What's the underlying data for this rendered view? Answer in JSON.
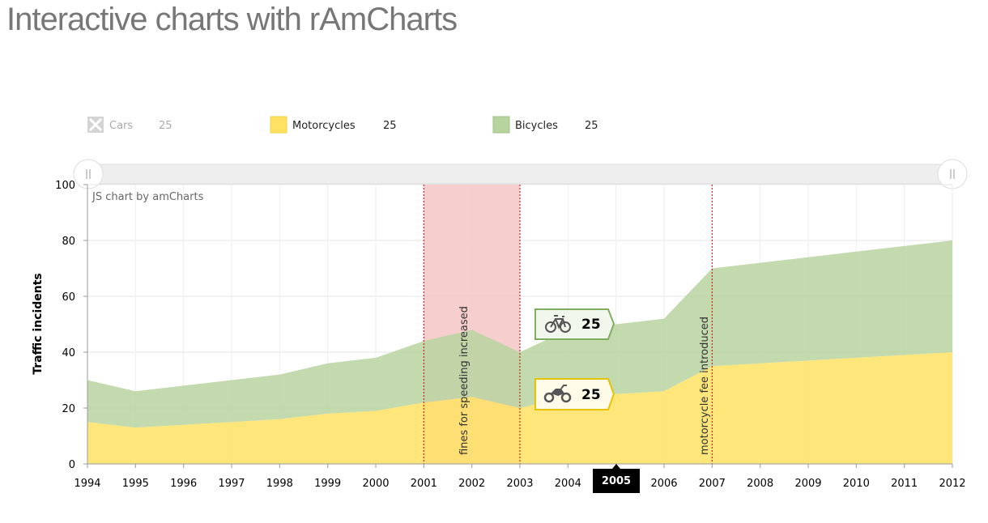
{
  "page": {
    "title": "Interactive charts with rAmCharts"
  },
  "colors": {
    "cars": "#cccccc",
    "motorcycles": "#ffe264",
    "motorcycles_border": "#e6c200",
    "bicycles": "#b7d4a0",
    "bicycles_border": "#7fad5e",
    "guide_band": "#f4c6c6",
    "guide_line": "#cc0000",
    "cursor_label_bg": "#000000"
  },
  "legend": {
    "items": [
      {
        "label": "Cars",
        "value": "25",
        "hidden": true,
        "icon": "close-x-icon"
      },
      {
        "label": "Motorcycles",
        "value": "25",
        "hidden": false
      },
      {
        "label": "Bicycles",
        "value": "25",
        "hidden": false
      }
    ]
  },
  "credit": "JS chart by amCharts",
  "balloons": {
    "bicycles": {
      "icon": "bicycle-icon",
      "value": "25"
    },
    "motorcycles": {
      "icon": "motorcycle-icon",
      "value": "25"
    }
  },
  "cursor": {
    "label": "2005"
  },
  "chart_data": {
    "type": "area",
    "stacked": true,
    "ylabel": "Traffic incidents",
    "xlabel": "",
    "ylim": [
      0,
      100
    ],
    "yticks": [
      0,
      20,
      40,
      60,
      80,
      100
    ],
    "grid": true,
    "legend_position": "top",
    "x": [
      "1994",
      "1995",
      "1996",
      "1997",
      "1998",
      "1999",
      "2000",
      "2001",
      "2002",
      "2003",
      "2004",
      "2005",
      "2006",
      "2007",
      "2008",
      "2009",
      "2010",
      "2011",
      "2012"
    ],
    "series": [
      {
        "name": "Motorcycles",
        "key": "motorcycles",
        "values": [
          15,
          13,
          14,
          15,
          16,
          18,
          19,
          22,
          24,
          20,
          24,
          25,
          26,
          35,
          36,
          37,
          38,
          39,
          40
        ]
      },
      {
        "name": "Bicycles",
        "key": "bicycles",
        "values": [
          15,
          13,
          14,
          15,
          16,
          18,
          19,
          22,
          24,
          20,
          24,
          25,
          26,
          35,
          36,
          37,
          38,
          39,
          40
        ]
      }
    ],
    "guides": [
      {
        "from": "2001",
        "to": "2003",
        "label": "fines for speeding increased"
      },
      {
        "from": "2007",
        "label": "motorcycle fee introduced"
      }
    ]
  }
}
